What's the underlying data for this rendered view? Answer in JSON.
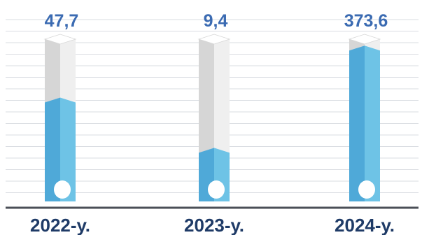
{
  "chart_data": {
    "type": "bar",
    "categories": [
      "2022-у.",
      "2023-у.",
      "2024-у."
    ],
    "values": [
      47.7,
      9.4,
      373.6
    ],
    "value_labels": [
      "47,7",
      "9,4",
      "373,6"
    ],
    "fill_fractions": [
      0.61,
      0.3,
      0.93
    ],
    "grid": true,
    "legend": "none"
  },
  "colors": {
    "fill": "#6EC3E6",
    "fill_dark": "#4FA9D8",
    "empty": "#EFEFEF",
    "empty_dark": "#D6D6D6",
    "top": "#FFFFFF",
    "value_text": "#3B6BB2",
    "category_text": "#1F3B67",
    "axis": "#4B4F57",
    "grid": "#DADDE2"
  }
}
